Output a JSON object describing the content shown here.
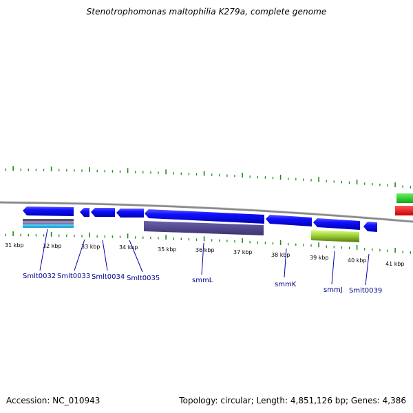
{
  "title": "Stenotrophomonas maltophilia K279a, complete genome",
  "footer": {
    "accession": "Accession: NC_010943",
    "stats": "Topology: circular; Length: 4,851,126 bp; Genes: 4,386"
  },
  "colors": {
    "gene_blue": "#0000ee",
    "backbone": "#888888",
    "tick_green": "#1a8a1a",
    "label_blue": "#00008b",
    "rna_green": "#33cc33",
    "rna_red": "#ee0000"
  },
  "kbp_labels": [
    "31 kbp",
    "32 kbp",
    "33 kbp",
    "34 kbp",
    "35 kbp",
    "36 kbp",
    "37 kbp",
    "38 kbp",
    "39 kbp",
    "40 kbp",
    "41 kbp"
  ],
  "gene_labels": [
    "Smlt0032",
    "Smlt0033",
    "Smlt0034",
    "Smlt0035",
    "smmL",
    "smmK",
    "smmJ",
    "Smlt0039"
  ]
}
